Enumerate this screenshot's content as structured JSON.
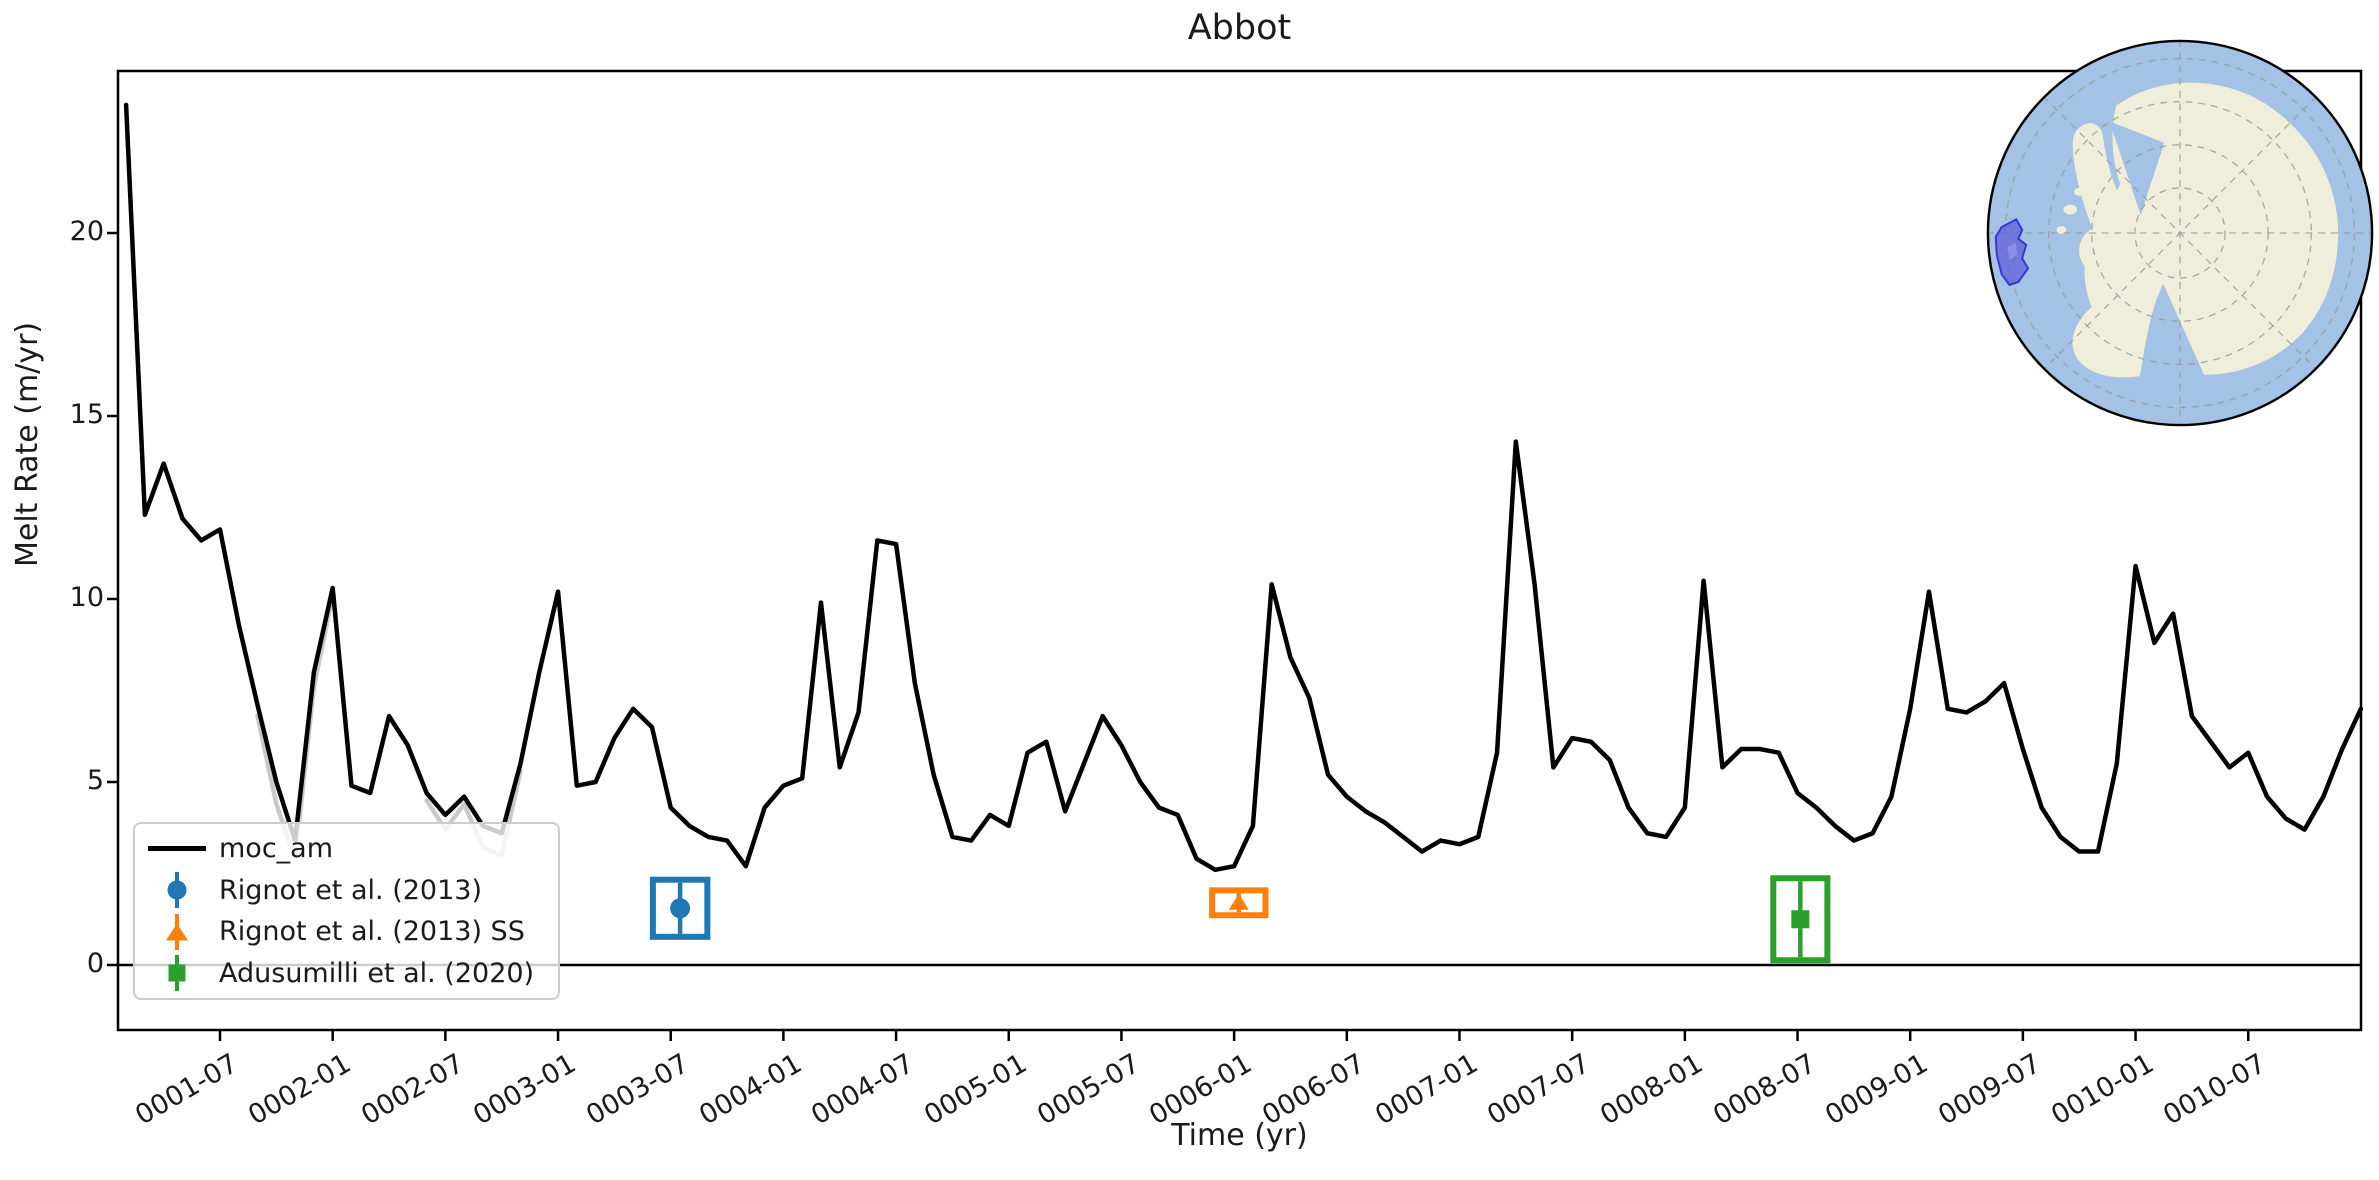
{
  "title": "Abbot",
  "axes": {
    "xlabel": "Time (yr)",
    "ylabel": "Melt Rate (m/yr)",
    "yticks": [
      0,
      5,
      10,
      15,
      20
    ],
    "xticks": [
      {
        "month": 6,
        "label": "0001-07"
      },
      {
        "month": 12,
        "label": "0002-01"
      },
      {
        "month": 18,
        "label": "0002-07"
      },
      {
        "month": 24,
        "label": "0003-01"
      },
      {
        "month": 30,
        "label": "0003-07"
      },
      {
        "month": 36,
        "label": "0004-01"
      },
      {
        "month": 42,
        "label": "0004-07"
      },
      {
        "month": 48,
        "label": "0005-01"
      },
      {
        "month": 54,
        "label": "0005-07"
      },
      {
        "month": 60,
        "label": "0006-01"
      },
      {
        "month": 66,
        "label": "0006-07"
      },
      {
        "month": 72,
        "label": "0007-01"
      },
      {
        "month": 78,
        "label": "0007-07"
      },
      {
        "month": 84,
        "label": "0008-01"
      },
      {
        "month": 90,
        "label": "0008-07"
      },
      {
        "month": 96,
        "label": "0009-01"
      },
      {
        "month": 102,
        "label": "0009-07"
      },
      {
        "month": 108,
        "label": "0010-01"
      },
      {
        "month": 114,
        "label": "0010-07"
      }
    ]
  },
  "chart_data": {
    "type": "line",
    "title": "Abbot",
    "xlabel": "Time (yr)",
    "ylabel": "Melt Rate (m/yr)",
    "x_unit": "months since 0001-01",
    "xlim_months": [
      0.57,
      120.0
    ],
    "ylim": [
      -1.78,
      24.43
    ],
    "grid": false,
    "legend_position": "lower left",
    "zero_line": 0,
    "series": [
      {
        "name": "moc_am",
        "color": "#000000",
        "linewidth": 4.5,
        "start_month": 1,
        "values": [
          23.5,
          12.3,
          13.7,
          12.2,
          11.6,
          11.9,
          9.3,
          7.1,
          5.0,
          3.4,
          8.0,
          10.3,
          4.9,
          4.7,
          6.8,
          6.0,
          4.7,
          4.1,
          4.6,
          3.8,
          3.6,
          5.5,
          8.0,
          10.2,
          4.9,
          5.0,
          6.2,
          7.0,
          6.5,
          4.3,
          3.8,
          3.5,
          3.4,
          2.7,
          4.3,
          4.9,
          5.1,
          9.9,
          5.4,
          6.9,
          11.6,
          11.5,
          7.7,
          5.2,
          3.5,
          3.4,
          4.1,
          3.8,
          5.8,
          6.1,
          4.2,
          5.5,
          6.8,
          6.0,
          5.0,
          4.3,
          4.1,
          2.9,
          2.6,
          2.7,
          3.8,
          10.4,
          8.4,
          7.3,
          5.2,
          4.6,
          4.2,
          3.9,
          3.5,
          3.1,
          3.4,
          3.3,
          3.5,
          5.8,
          14.3,
          10.4,
          5.4,
          6.2,
          6.1,
          5.6,
          4.3,
          3.6,
          3.5,
          4.3,
          10.5,
          5.4,
          5.9,
          5.9,
          5.8,
          4.7,
          4.3,
          3.8,
          3.4,
          3.6,
          4.6,
          7.0,
          10.2,
          7.0,
          6.9,
          7.2,
          7.7,
          5.9,
          4.3,
          3.5,
          3.1,
          3.1,
          5.5,
          10.9,
          8.8,
          9.6,
          6.8,
          6.1,
          5.4,
          5.8,
          4.6,
          4.0,
          3.7,
          4.6,
          5.9,
          7.0
        ]
      }
    ],
    "shadow_series": {
      "color": "#c9c9c9",
      "linewidth": 4.5,
      "segments": [
        {
          "months": [
            8,
            9,
            10,
            11,
            12
          ],
          "values": [
            6.8,
            4.4,
            2.9,
            7.6,
            10.1
          ]
        },
        {
          "months": [
            17,
            18,
            19,
            20,
            21,
            22
          ],
          "values": [
            4.5,
            3.7,
            4.4,
            3.2,
            3.0,
            5.3
          ]
        }
      ]
    },
    "reference_markers": [
      {
        "label": "Rignot et al. (2013)",
        "color": "#1f77b4",
        "marker": "circle",
        "month": 30.5,
        "value": 1.55,
        "yerr": 0.78,
        "xerr_months": 1.45
      },
      {
        "label": "Rignot et al. (2013) SS",
        "color": "#ff7f0e",
        "marker": "triangle",
        "month": 60.25,
        "value": 1.7,
        "yerr": 0.34,
        "xerr_months": 1.42
      },
      {
        "label": "Adusumilli et al. (2020)",
        "color": "#2ca02c",
        "marker": "square",
        "month": 90.15,
        "value": 1.25,
        "yerr": 1.12,
        "xerr_months": 1.44
      }
    ]
  },
  "inset_map": {
    "ocean_color": "#a4c2e5",
    "land_color": "#efeeda",
    "graticule_color": "#9a9a9a",
    "region_fill": "#5c5cdb",
    "region_stroke": "#3b35cf"
  }
}
